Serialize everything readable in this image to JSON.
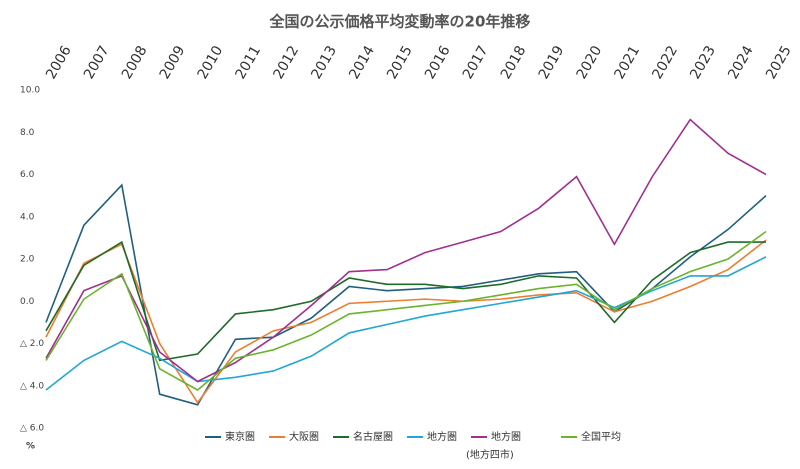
{
  "chart_data": {
    "type": "line",
    "title": "全国の公示価格平均変動率の20年推移",
    "categories": [
      "2006",
      "2007",
      "2008",
      "2009",
      "2010",
      "2011",
      "2012",
      "2013",
      "2014",
      "2015",
      "2016",
      "2017",
      "2018",
      "2019",
      "2020",
      "2021",
      "2022",
      "2023",
      "2024",
      "2025"
    ],
    "series": [
      {
        "name": "東京圏",
        "color": "#1f5f7f",
        "values": [
          -1.0,
          3.6,
          5.5,
          -4.4,
          -4.9,
          -1.8,
          -1.7,
          -0.8,
          0.7,
          0.5,
          0.6,
          0.7,
          1.0,
          1.3,
          1.4,
          -0.5,
          0.6,
          2.1,
          3.4,
          5.0
        ]
      },
      {
        "name": "大阪圏",
        "color": "#ed7d31",
        "values": [
          -1.7,
          1.8,
          2.7,
          -2.0,
          -4.8,
          -2.4,
          -1.4,
          -1.0,
          -0.1,
          0.0,
          0.1,
          0.0,
          0.1,
          0.3,
          0.4,
          -0.5,
          0.0,
          0.7,
          1.5,
          2.9
        ]
      },
      {
        "name": "名古屋圏",
        "color": "#1e6b2a",
        "values": [
          -1.4,
          1.7,
          2.8,
          -2.8,
          -2.5,
          -0.6,
          -0.4,
          0.0,
          1.1,
          0.8,
          0.8,
          0.6,
          0.8,
          1.2,
          1.1,
          -1.0,
          1.0,
          2.3,
          2.8,
          2.8
        ]
      },
      {
        "name": "地方圏",
        "color": "#22a6d6",
        "values": [
          -4.2,
          -2.8,
          -1.9,
          -2.7,
          -3.8,
          -3.6,
          -3.3,
          -2.6,
          -1.5,
          -1.1,
          -0.7,
          -0.4,
          -0.1,
          0.2,
          0.5,
          -0.3,
          0.5,
          1.2,
          1.2,
          2.1
        ]
      },
      {
        "name": "地方圏",
        "color": "#a0308f",
        "values": [
          -2.7,
          0.5,
          1.2,
          -2.4,
          -3.8,
          -2.9,
          -1.7,
          -0.2,
          1.4,
          1.5,
          2.3,
          2.8,
          3.3,
          4.4,
          5.9,
          2.7,
          5.9,
          8.6,
          7.0,
          6.0
        ]
      },
      {
        "name": "全国平均",
        "color": "#6ab42d",
        "values": [
          -2.8,
          0.1,
          1.3,
          -3.2,
          -4.2,
          -2.7,
          -2.3,
          -1.6,
          -0.6,
          -0.4,
          -0.2,
          0.0,
          0.3,
          0.6,
          0.8,
          -0.4,
          0.6,
          1.4,
          2.0,
          3.3
        ]
      }
    ],
    "annotation": "(地方四市)",
    "y_unit": "%",
    "ylim": [
      -6,
      10
    ],
    "yticks": [
      {
        "value": 10,
        "label": "10.0"
      },
      {
        "value": 8,
        "label": "8.0"
      },
      {
        "value": 6,
        "label": "6.0"
      },
      {
        "value": 4,
        "label": "4.0"
      },
      {
        "value": 2,
        "label": "2.0"
      },
      {
        "value": 0,
        "label": "0.0"
      },
      {
        "value": -2,
        "label": "△ 2.0"
      },
      {
        "value": -4,
        "label": "△ 4.0"
      },
      {
        "value": -6,
        "label": "△ 6.0"
      }
    ],
    "grid": false
  }
}
